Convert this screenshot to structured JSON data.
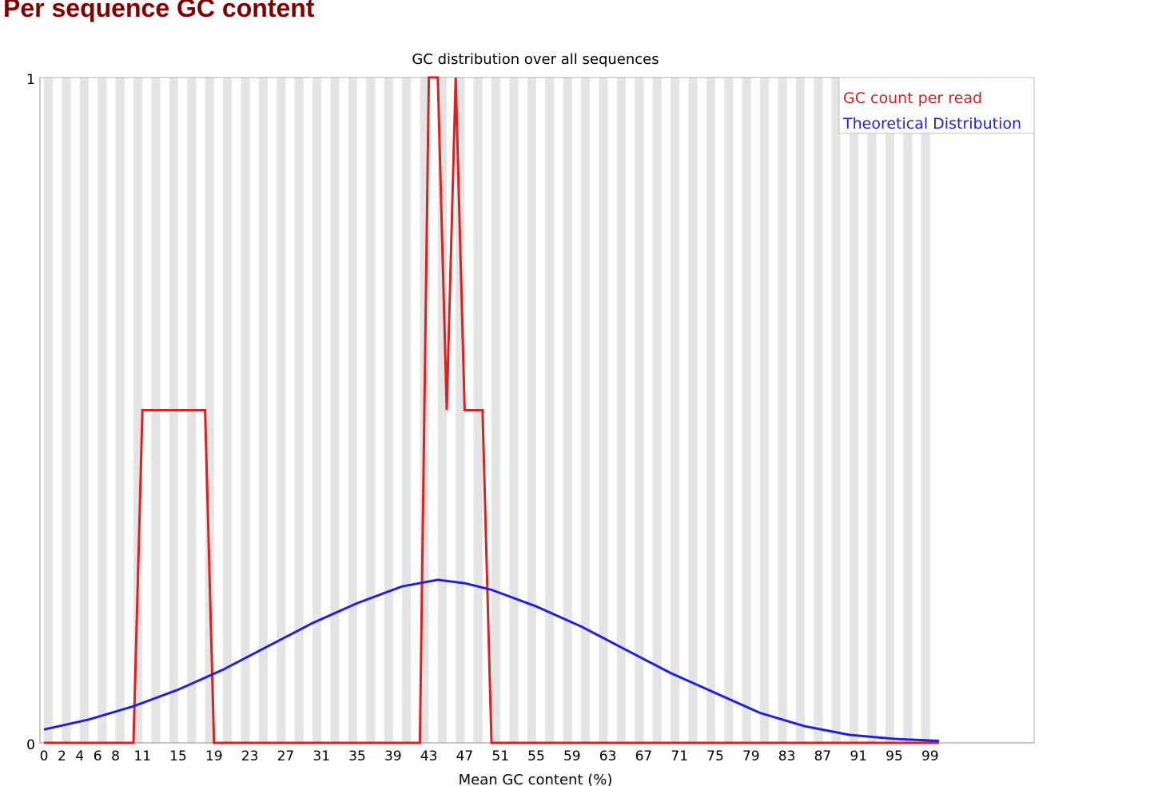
{
  "page": {
    "heading": "Per sequence GC content"
  },
  "chart_data": {
    "type": "line",
    "title": "GC distribution over all sequences",
    "xlabel": "Mean GC content (%)",
    "ylabel": "",
    "xlim": [
      0,
      100
    ],
    "ylim": [
      0,
      1
    ],
    "yticks": [
      "0",
      "1"
    ],
    "xtick_labels": [
      "0",
      "2",
      "4",
      "6",
      "8",
      "11",
      "15",
      "19",
      "23",
      "27",
      "31",
      "35",
      "39",
      "43",
      "47",
      "51",
      "55",
      "59",
      "63",
      "67",
      "71",
      "75",
      "79",
      "83",
      "87",
      "91",
      "95",
      "99"
    ],
    "xtick_values": [
      0,
      2,
      4,
      6,
      8,
      11,
      15,
      19,
      23,
      27,
      31,
      35,
      39,
      43,
      47,
      51,
      55,
      59,
      63,
      67,
      71,
      75,
      79,
      83,
      87,
      91,
      95,
      99
    ],
    "grid": "alternating vertical bands",
    "legend_position": "top-right",
    "series": [
      {
        "name": "GC count per read",
        "color": "#dd2020",
        "points": [
          [
            0,
            0
          ],
          [
            10,
            0
          ],
          [
            11,
            0.5
          ],
          [
            18,
            0.5
          ],
          [
            19,
            0
          ],
          [
            42,
            0
          ],
          [
            43,
            1
          ],
          [
            44,
            1
          ],
          [
            45,
            0.5
          ],
          [
            46,
            1
          ],
          [
            47,
            0.5
          ],
          [
            49,
            0.5
          ],
          [
            50,
            0
          ],
          [
            100,
            0
          ]
        ]
      },
      {
        "name": "Theoretical Distribution",
        "color": "#2020dd",
        "points": [
          [
            0,
            0.02
          ],
          [
            5,
            0.035
          ],
          [
            10,
            0.055
          ],
          [
            15,
            0.08
          ],
          [
            20,
            0.11
          ],
          [
            25,
            0.145
          ],
          [
            30,
            0.18
          ],
          [
            35,
            0.21
          ],
          [
            40,
            0.235
          ],
          [
            44,
            0.245
          ],
          [
            47,
            0.24
          ],
          [
            50,
            0.23
          ],
          [
            55,
            0.205
          ],
          [
            60,
            0.175
          ],
          [
            65,
            0.14
          ],
          [
            70,
            0.105
          ],
          [
            75,
            0.075
          ],
          [
            80,
            0.045
          ],
          [
            85,
            0.025
          ],
          [
            90,
            0.012
          ],
          [
            95,
            0.006
          ],
          [
            100,
            0.003
          ]
        ]
      }
    ]
  }
}
